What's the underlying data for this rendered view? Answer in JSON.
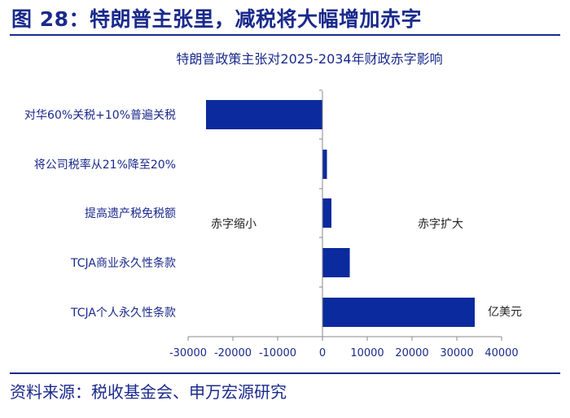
{
  "figure": {
    "title": "图 28：特朗普主张里，减税将大幅增加赤字",
    "source": "资料来源：税收基金会、申万宏源研究"
  },
  "colors": {
    "bar": "#0a2a9e",
    "text": "#1a2a8c",
    "axis": "#8a8a8a"
  },
  "chart_data": {
    "type": "bar",
    "orientation": "horizontal",
    "title": "特朗普政策主张对2025-2034年财政赤字影响",
    "categories": [
      "对华60%关税+10%普遍关税",
      "将公司税率从21%降至20%",
      "提高遗产税免税额",
      "TCJA商业永久性条款",
      "TCJA个人永久性条款"
    ],
    "values": [
      -26000,
      1000,
      2000,
      6100,
      34000
    ],
    "xlim": [
      -30000,
      40000
    ],
    "xticks": [
      -30000,
      -20000,
      -10000,
      0,
      10000,
      20000,
      30000,
      40000
    ],
    "xtick_labels": [
      "-30000",
      "-20000",
      "-10000",
      "0",
      "10000",
      "20000",
      "30000",
      "40000"
    ],
    "unit": "亿美元",
    "annotations": {
      "left": "赤字缩小",
      "right": "赤字扩大"
    }
  }
}
